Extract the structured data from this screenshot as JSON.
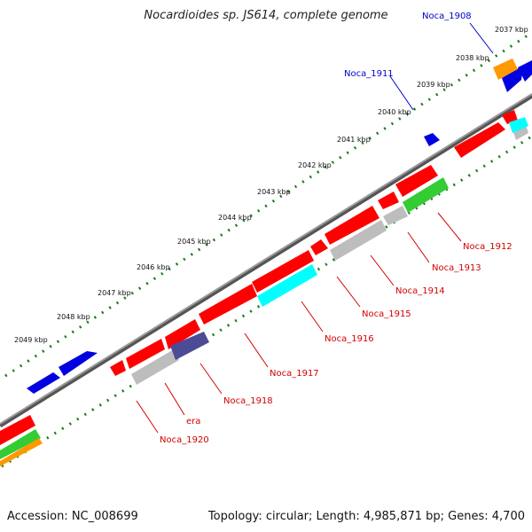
{
  "title": "Nocardioides sp. JS614, complete genome",
  "footer": {
    "accession": "Accession: NC_008699",
    "summary": "Topology: circular; Length: 4,985,871 bp; Genes: 4,700"
  },
  "colors": {
    "backbone": "#7a7a7a",
    "tick": "#1a7a1a",
    "cds_red": "#ff0000",
    "gray": "#bdbdbd",
    "cyan": "#00ffff",
    "blue": "#0000e0",
    "purple": "#4b4b96",
    "green": "#33cc33",
    "orange": "#ff9900",
    "label_red": "#d40000",
    "label_blue": "#0000cc"
  },
  "kbp_labels": [
    "2037 kbp",
    "2038 kbp",
    "2039 kbp",
    "2040 kbp",
    "2041 kbp",
    "2042 kbp",
    "2043 kbp",
    "2044 kbp",
    "2045 kbp",
    "2046 kbp",
    "2047 kbp",
    "2048 kbp",
    "2049 kbp"
  ],
  "gene_labels_lower": [
    "Noca_1912",
    "Noca_1913",
    "Noca_1914",
    "Noca_1915",
    "Noca_1916",
    "Noca_1917",
    "Noca_1918",
    "era",
    "Noca_1920"
  ],
  "gene_labels_upper": [
    "Noca_1908",
    "Noca_1911"
  ]
}
